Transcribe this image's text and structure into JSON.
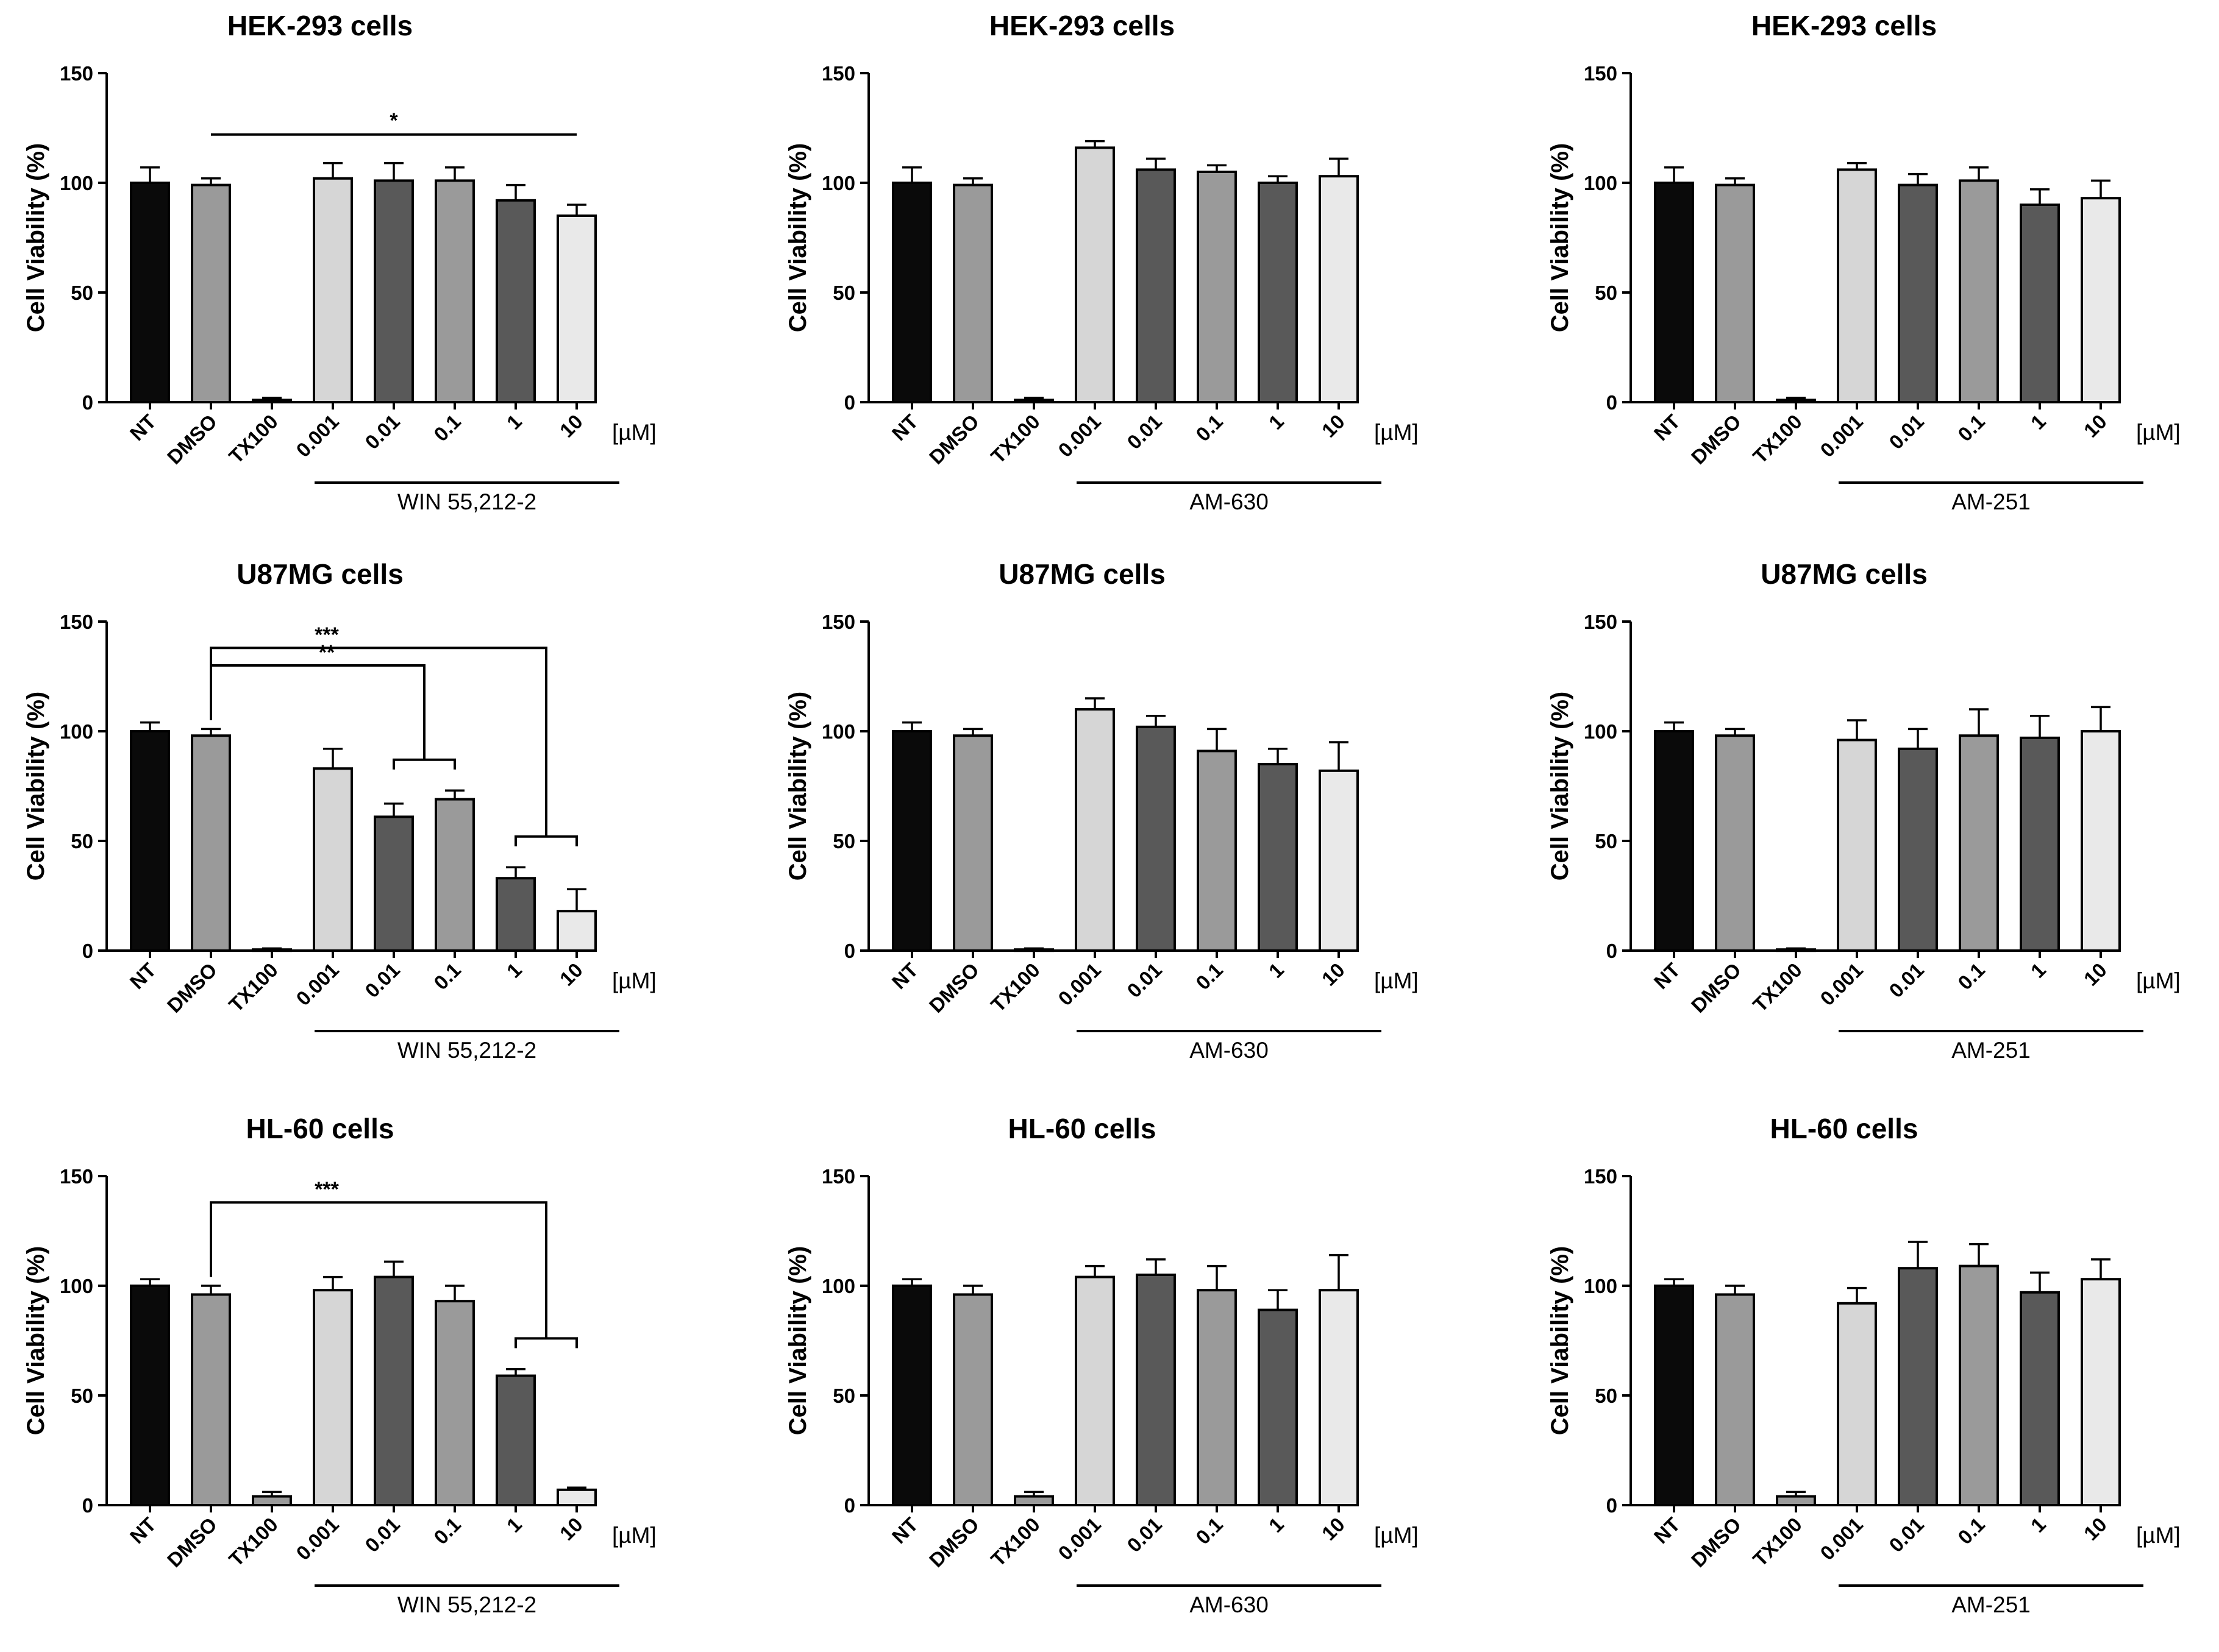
{
  "figure_colors": {
    "NT": "#0a0a0a",
    "DMSO": "#9a9a9a",
    "TX100": "#9a9a9a",
    "0.001": "#d6d6d6",
    "0.01": "#595959",
    "0.1": "#9a9a9a",
    "1": "#595959",
    "10": "#e9e9e9",
    "outline": "#000000"
  },
  "chart_data": [
    {
      "type": "bar",
      "title": "HEK-293 cells",
      "ylabel": "Cell Viability (%)",
      "ylim": [
        0,
        150
      ],
      "yticks": [
        "0",
        "50",
        "100",
        "150"
      ],
      "categories": [
        "NT",
        "DMSO",
        "TX100",
        "0.001",
        "0.01",
        "0.1",
        "1",
        "10"
      ],
      "unit": "[µM]",
      "drug": "WIN 55,212-2",
      "values": [
        100,
        99,
        1,
        102,
        101,
        101,
        92,
        85
      ],
      "errors": [
        7,
        3,
        1,
        7,
        8,
        6,
        7,
        5
      ],
      "significance": [
        {
          "from": "DMSO",
          "to": "10",
          "label": "*"
        }
      ]
    },
    {
      "type": "bar",
      "title": "HEK-293 cells",
      "ylabel": "Cell Viability (%)",
      "ylim": [
        0,
        150
      ],
      "yticks": [
        "0",
        "50",
        "100",
        "150"
      ],
      "categories": [
        "NT",
        "DMSO",
        "TX100",
        "0.001",
        "0.01",
        "0.1",
        "1",
        "10"
      ],
      "unit": "[µM]",
      "drug": "AM-630",
      "values": [
        100,
        99,
        1,
        116,
        106,
        105,
        100,
        103
      ],
      "errors": [
        7,
        3,
        1,
        3,
        5,
        3,
        3,
        8
      ],
      "significance": []
    },
    {
      "type": "bar",
      "title": "HEK-293 cells",
      "ylabel": "Cell Viability (%)",
      "ylim": [
        0,
        150
      ],
      "yticks": [
        "0",
        "50",
        "100",
        "150"
      ],
      "categories": [
        "NT",
        "DMSO",
        "TX100",
        "0.001",
        "0.01",
        "0.1",
        "1",
        "10"
      ],
      "unit": "[µM]",
      "drug": "AM-251",
      "values": [
        100,
        99,
        1,
        106,
        99,
        101,
        90,
        93
      ],
      "errors": [
        7,
        3,
        1,
        3,
        5,
        6,
        7,
        8
      ],
      "significance": []
    },
    {
      "type": "bar",
      "title": "U87MG cells",
      "ylabel": "Cell Viability (%)",
      "ylim": [
        0,
        150
      ],
      "yticks": [
        "0",
        "50",
        "100",
        "150"
      ],
      "categories": [
        "NT",
        "DMSO",
        "TX100",
        "0.001",
        "0.01",
        "0.1",
        "1",
        "10"
      ],
      "unit": "[µM]",
      "drug": "WIN 55,212-2",
      "values": [
        100,
        98,
        0.5,
        83,
        61,
        69,
        33,
        18
      ],
      "errors": [
        4,
        3,
        0.5,
        9,
        6,
        4,
        5,
        10
      ],
      "significance": [
        {
          "from": "DMSO",
          "toGroup": [
            "0.01",
            "0.1"
          ],
          "label": "**"
        },
        {
          "from": "DMSO",
          "toGroup": [
            "1",
            "10"
          ],
          "label": "***"
        }
      ]
    },
    {
      "type": "bar",
      "title": "U87MG cells",
      "ylabel": "Cell Viability (%)",
      "ylim": [
        0,
        150
      ],
      "yticks": [
        "0",
        "50",
        "100",
        "150"
      ],
      "categories": [
        "NT",
        "DMSO",
        "TX100",
        "0.001",
        "0.01",
        "0.1",
        "1",
        "10"
      ],
      "unit": "[µM]",
      "drug": "AM-630",
      "values": [
        100,
        98,
        0.5,
        110,
        102,
        91,
        85,
        82
      ],
      "errors": [
        4,
        3,
        0.5,
        5,
        5,
        10,
        7,
        13
      ],
      "significance": []
    },
    {
      "type": "bar",
      "title": "U87MG cells",
      "ylabel": "Cell Viability (%)",
      "ylim": [
        0,
        150
      ],
      "yticks": [
        "0",
        "50",
        "100",
        "150"
      ],
      "categories": [
        "NT",
        "DMSO",
        "TX100",
        "0.001",
        "0.01",
        "0.1",
        "1",
        "10"
      ],
      "unit": "[µM]",
      "drug": "AM-251",
      "values": [
        100,
        98,
        0.5,
        96,
        92,
        98,
        97,
        100
      ],
      "errors": [
        4,
        3,
        0.5,
        9,
        9,
        12,
        10,
        11
      ],
      "significance": []
    },
    {
      "type": "bar",
      "title": "HL-60 cells",
      "ylabel": "Cell Viability (%)",
      "ylim": [
        0,
        150
      ],
      "yticks": [
        "0",
        "50",
        "100",
        "150"
      ],
      "categories": [
        "NT",
        "DMSO",
        "TX100",
        "0.001",
        "0.01",
        "0.1",
        "1",
        "10"
      ],
      "unit": "[µM]",
      "drug": "WIN 55,212-2",
      "values": [
        100,
        96,
        4,
        98,
        104,
        93,
        59,
        7
      ],
      "errors": [
        3,
        4,
        2,
        6,
        7,
        7,
        3,
        1
      ],
      "significance": [
        {
          "from": "DMSO",
          "toGroup": [
            "1",
            "10"
          ],
          "label": "***"
        }
      ]
    },
    {
      "type": "bar",
      "title": "HL-60 cells",
      "ylabel": "Cell Viability (%)",
      "ylim": [
        0,
        150
      ],
      "yticks": [
        "0",
        "50",
        "100",
        "150"
      ],
      "categories": [
        "NT",
        "DMSO",
        "TX100",
        "0.001",
        "0.01",
        "0.1",
        "1",
        "10"
      ],
      "unit": "[µM]",
      "drug": "AM-630",
      "values": [
        100,
        96,
        4,
        104,
        105,
        98,
        89,
        98
      ],
      "errors": [
        3,
        4,
        2,
        5,
        7,
        11,
        9,
        16
      ],
      "significance": []
    },
    {
      "type": "bar",
      "title": "HL-60 cells",
      "ylabel": "Cell Viability (%)",
      "ylim": [
        0,
        150
      ],
      "yticks": [
        "0",
        "50",
        "100",
        "150"
      ],
      "categories": [
        "NT",
        "DMSO",
        "TX100",
        "0.001",
        "0.01",
        "0.1",
        "1",
        "10"
      ],
      "unit": "[µM]",
      "drug": "AM-251",
      "values": [
        100,
        96,
        4,
        92,
        108,
        109,
        97,
        103
      ],
      "errors": [
        3,
        4,
        2,
        7,
        12,
        10,
        9,
        9
      ],
      "significance": []
    }
  ]
}
